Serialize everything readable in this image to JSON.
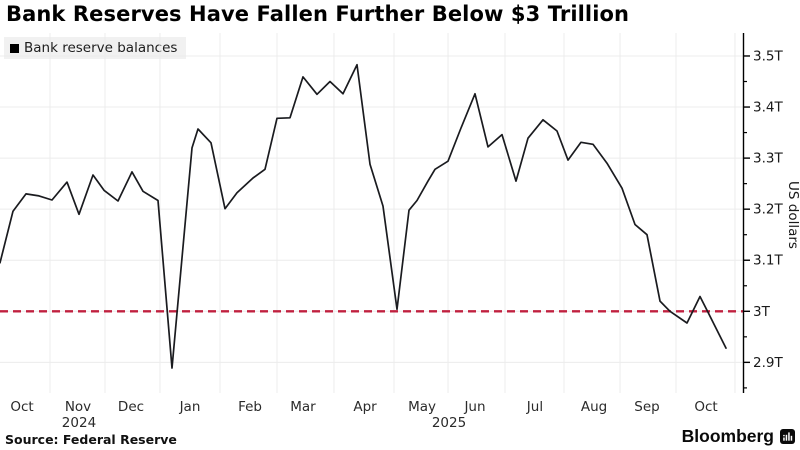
{
  "title": "Bank Reserves Have Fallen Further Below $3 Trillion",
  "legend": {
    "label": "Bank reserve balances",
    "swatch_color": "#000000"
  },
  "source": "Source:  Federal Reserve",
  "branding": {
    "name": "Bloomberg"
  },
  "colors": {
    "line": "#1a1b1f",
    "grid": "#ececec",
    "axis": "#000000",
    "reference": "#c0203f",
    "tick_text": "#1a1a1a",
    "month_text": "#2b2b2b"
  },
  "chart_data": {
    "type": "line",
    "title": "Bank Reserves Have Fallen Further Below $3 Trillion",
    "ylabel": "US dollars",
    "unit": "trillions of US dollars",
    "legend_position": "top-left",
    "grid": true,
    "ylim": [
      2.84,
      3.545
    ],
    "yticks_major": {
      "values": [
        2.9,
        3.0,
        3.1,
        3.2,
        3.3,
        3.4,
        3.5
      ],
      "labels": [
        "2.9T",
        "3T",
        "3.1T",
        "3.2T",
        "3.3T",
        "3.4T",
        "3.5T"
      ]
    },
    "yticks_minor": [
      2.85,
      2.95,
      3.05,
      3.15,
      3.25,
      3.35,
      3.45
    ],
    "reference_line": {
      "value": 3.0,
      "style": "dashed",
      "color": "#c0203f"
    },
    "x_month_ticks": [
      {
        "label": "Oct",
        "x_pct": 2.96
      },
      {
        "label": "Nov",
        "x_pct": 10.5
      },
      {
        "label": "Dec",
        "x_pct": 17.63
      },
      {
        "label": "Jan",
        "x_pct": 25.57
      },
      {
        "label": "Feb",
        "x_pct": 33.65
      },
      {
        "label": "Mar",
        "x_pct": 40.78
      },
      {
        "label": "Apr",
        "x_pct": 49.13
      },
      {
        "label": "May",
        "x_pct": 56.8
      },
      {
        "label": "Jun",
        "x_pct": 63.93
      },
      {
        "label": "Jul",
        "x_pct": 72.0
      },
      {
        "label": "Aug",
        "x_pct": 79.95
      },
      {
        "label": "Sep",
        "x_pct": 87.08
      },
      {
        "label": "Oct",
        "x_pct": 95.02
      }
    ],
    "x_year_labels": [
      {
        "label": "2024",
        "x_pct": 10.63
      },
      {
        "label": "2025",
        "x_pct": 60.43
      }
    ],
    "month_boundaries_pct": [
      6.73,
      14.13,
      21.53,
      29.61,
      37.28,
      44.95,
      53.03,
      60.3,
      67.97,
      75.91,
      83.45,
      90.98,
      98.92
    ],
    "series": [
      {
        "name": "Bank reserve balances",
        "color": "#1a1b1f",
        "x_pct": [
          0,
          1.75,
          3.5,
          5.25,
          7.0,
          9.02,
          10.63,
          12.52,
          14.0,
          15.88,
          17.77,
          19.25,
          21.27,
          23.15,
          25.84,
          26.65,
          28.4,
          30.28,
          31.9,
          34.05,
          35.67,
          37.28,
          39.03,
          40.78,
          42.66,
          44.41,
          46.16,
          48.05,
          49.8,
          51.55,
          53.43,
          55.05,
          56.12,
          57.6,
          58.55,
          60.3,
          62.05,
          63.93,
          65.68,
          67.56,
          69.45,
          71.06,
          73.08,
          74.97,
          76.45,
          78.2,
          79.81,
          81.7,
          83.71,
          85.46,
          87.08,
          88.83,
          90.18,
          92.46,
          94.21,
          95.29,
          97.71
        ],
        "values": [
          3.095,
          3.196,
          3.23,
          3.226,
          3.218,
          3.253,
          3.19,
          3.267,
          3.237,
          3.216,
          3.273,
          3.235,
          3.217,
          2.889,
          3.32,
          3.357,
          3.33,
          3.201,
          3.232,
          3.261,
          3.278,
          3.378,
          3.379,
          3.459,
          3.425,
          3.45,
          3.426,
          3.483,
          3.288,
          3.206,
          3.004,
          3.198,
          3.217,
          3.255,
          3.278,
          3.294,
          3.359,
          3.426,
          3.322,
          3.346,
          3.255,
          3.339,
          3.375,
          3.353,
          3.296,
          3.331,
          3.327,
          3.29,
          3.241,
          3.17,
          3.15,
          3.02,
          3.0,
          2.977,
          3.029,
          2.998,
          2.928
        ]
      }
    ]
  }
}
